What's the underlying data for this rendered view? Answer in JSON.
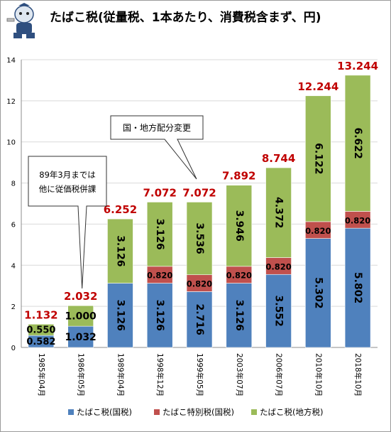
{
  "title": "たばこ税(従量税、1本あたり、消費税含まず、円)",
  "chart_data": {
    "type": "bar",
    "stacked": true,
    "categories": [
      "1985年04月",
      "1986年05月",
      "1989年04月",
      "1998年12月",
      "1999年05月",
      "2003年07月",
      "2006年07月",
      "2010年10月",
      "2018年10月"
    ],
    "series": [
      {
        "name": "たばこ税(国税)",
        "color": "#4f81bd",
        "values": [
          0.582,
          1.032,
          3.126,
          3.126,
          2.716,
          3.126,
          3.552,
          5.302,
          5.802
        ],
        "labels": [
          "0.582",
          "1.032",
          "3.126",
          "3.126",
          "2.716",
          "3.126",
          "3.552",
          "5.302",
          "5.802"
        ]
      },
      {
        "name": "たばこ特別税(国税)",
        "color": "#c0504d",
        "values": [
          0,
          0,
          0,
          0.82,
          0.82,
          0.82,
          0.82,
          0.82,
          0.82
        ],
        "labels": [
          "",
          "",
          "",
          "0.820",
          "0.820",
          "0.820",
          "0.820",
          "0.820",
          "0.820"
        ]
      },
      {
        "name": "たばこ税(地方税)",
        "color": "#9bbb59",
        "values": [
          0.55,
          1.0,
          3.126,
          3.126,
          3.536,
          3.946,
          4.372,
          6.122,
          6.622
        ],
        "labels": [
          "0.550",
          "1.000",
          "3.126",
          "3.126",
          "3.536",
          "3.946",
          "4.372",
          "6.122",
          "6.622"
        ]
      }
    ],
    "totals": [
      "1.132",
      "2.032",
      "6.252",
      "7.072",
      "7.072",
      "7.892",
      "8.744",
      "12.244",
      "13.244"
    ],
    "ylim": [
      0,
      14
    ],
    "yticks": [
      "0",
      "2",
      "4",
      "6",
      "8",
      "10",
      "12",
      "14"
    ],
    "grid": true,
    "legend_position": "bottom",
    "annotations": [
      {
        "text": [
          "89年3月までは",
          "他に従価税併課"
        ],
        "category": "1986年05月"
      },
      {
        "text": [
          "国・地方配分変更"
        ],
        "category": "1999年05月"
      }
    ],
    "colors": {
      "total_label": "#c00000",
      "axis": "#8c8c8c",
      "grid": "#d9d9d9",
      "bar_text": "#000000"
    }
  }
}
